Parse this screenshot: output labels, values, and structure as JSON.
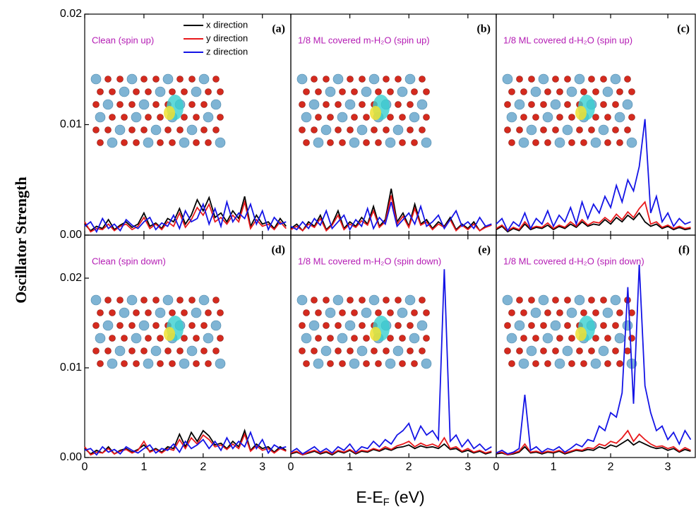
{
  "figure": {
    "ylabel": "Oscillator Strength",
    "xlabel": [
      "E-E",
      "F",
      " (eV)"
    ]
  },
  "chart_data": [
    {
      "type": "line",
      "panel": "(a)",
      "title": "Clean (spin up)",
      "legend": "upper right",
      "xlim": [
        0,
        3.48
      ],
      "ylim": [
        0,
        0.02
      ],
      "xticks": [
        0,
        1,
        2,
        3
      ],
      "xtick_labels": false,
      "yticks": [
        {
          "value": 0,
          "label": "0.00"
        },
        {
          "value": 0.01,
          "label": "0.01"
        },
        {
          "value": 0.02,
          "label": "0.02"
        }
      ],
      "x": [
        0,
        0.1,
        0.2,
        0.3,
        0.4,
        0.5,
        0.6,
        0.7,
        0.8,
        0.9,
        1,
        1.1,
        1.2,
        1.3,
        1.4,
        1.5,
        1.6,
        1.7,
        1.8,
        1.9,
        2,
        2.1,
        2.2,
        2.3,
        2.4,
        2.5,
        2.6,
        2.7,
        2.8,
        2.9,
        3,
        3.1,
        3.2,
        3.3,
        3.4
      ],
      "series": [
        {
          "name": "x direction",
          "color": "#000000",
          "values": [
            0.001,
            0.0004,
            0.0008,
            0.0006,
            0.0014,
            0.0005,
            0.0009,
            0.0012,
            0.0007,
            0.001,
            0.002,
            0.0008,
            0.0011,
            0.0006,
            0.0015,
            0.0012,
            0.0024,
            0.001,
            0.0018,
            0.0032,
            0.0022,
            0.0034,
            0.0016,
            0.002,
            0.0012,
            0.0022,
            0.0015,
            0.0035,
            0.0008,
            0.0018,
            0.001,
            0.0012,
            0.0006,
            0.0015,
            0.0008
          ]
        },
        {
          "name": "y direction",
          "color": "#e8191c",
          "values": [
            0.0012,
            0.0003,
            0.0006,
            0.0005,
            0.001,
            0.0004,
            0.0008,
            0.001,
            0.0005,
            0.0008,
            0.0016,
            0.0006,
            0.001,
            0.0005,
            0.0012,
            0.0008,
            0.002,
            0.0007,
            0.0014,
            0.0025,
            0.0018,
            0.0028,
            0.0012,
            0.0016,
            0.001,
            0.0018,
            0.0012,
            0.003,
            0.0006,
            0.0014,
            0.0008,
            0.001,
            0.0005,
            0.0012,
            0.0006
          ]
        },
        {
          "name": "z direction",
          "color": "#1414e6",
          "values": [
            0.0008,
            0.0012,
            0.0003,
            0.0015,
            0.0006,
            0.001,
            0.0004,
            0.0014,
            0.0009,
            0.0006,
            0.0012,
            0.0016,
            0.0005,
            0.0011,
            0.0008,
            0.0018,
            0.0006,
            0.0022,
            0.0012,
            0.0015,
            0.0028,
            0.001,
            0.0024,
            0.0008,
            0.003,
            0.0012,
            0.002,
            0.0015,
            0.0028,
            0.001,
            0.0022,
            0.0005,
            0.0016,
            0.001,
            0.0012
          ]
        }
      ]
    },
    {
      "type": "line",
      "panel": "(b)",
      "title": "1/8 ML covered m-H₂O (spin up)",
      "xlim": [
        0,
        3.48
      ],
      "ylim": [
        0,
        0.02
      ],
      "xticks": [
        0,
        1,
        2,
        3
      ],
      "xtick_labels": false,
      "x": [
        0,
        0.1,
        0.2,
        0.3,
        0.4,
        0.5,
        0.6,
        0.7,
        0.8,
        0.9,
        1,
        1.1,
        1.2,
        1.3,
        1.4,
        1.5,
        1.6,
        1.7,
        1.8,
        1.9,
        2,
        2.1,
        2.2,
        2.3,
        2.4,
        2.5,
        2.6,
        2.7,
        2.8,
        2.9,
        3,
        3.1,
        3.2,
        3.3,
        3.4
      ],
      "series": [
        {
          "name": "x direction",
          "color": "#000000",
          "values": [
            0.0006,
            0.001,
            0.0004,
            0.0012,
            0.0008,
            0.0018,
            0.0005,
            0.001,
            0.0022,
            0.0006,
            0.0012,
            0.0008,
            0.0016,
            0.001,
            0.0026,
            0.0008,
            0.0014,
            0.0042,
            0.0012,
            0.002,
            0.0008,
            0.0028,
            0.001,
            0.0014,
            0.0006,
            0.0012,
            0.0008,
            0.0016,
            0.0005,
            0.001,
            0.0006,
            0.0012,
            0.0004,
            0.0008,
            0.001
          ]
        },
        {
          "name": "y direction",
          "color": "#e8191c",
          "values": [
            0.0005,
            0.0008,
            0.0004,
            0.001,
            0.0007,
            0.0015,
            0.0004,
            0.0009,
            0.0018,
            0.0005,
            0.001,
            0.0007,
            0.0013,
            0.0009,
            0.0022,
            0.0007,
            0.0012,
            0.0036,
            0.001,
            0.0017,
            0.0007,
            0.0024,
            0.0009,
            0.0012,
            0.0005,
            0.001,
            0.0007,
            0.0014,
            0.0004,
            0.0009,
            0.0005,
            0.001,
            0.0004,
            0.0007,
            0.0009
          ]
        },
        {
          "name": "z direction",
          "color": "#1414e6",
          "values": [
            0.0008,
            0.0005,
            0.0012,
            0.0006,
            0.0015,
            0.0009,
            0.0022,
            0.0006,
            0.0012,
            0.0018,
            0.0005,
            0.0014,
            0.0008,
            0.0024,
            0.0006,
            0.0016,
            0.001,
            0.003,
            0.0008,
            0.0014,
            0.002,
            0.001,
            0.0026,
            0.0008,
            0.0012,
            0.0018,
            0.0006,
            0.0014,
            0.0022,
            0.0008,
            0.0012,
            0.0006,
            0.0016,
            0.0008,
            0.001
          ]
        }
      ]
    },
    {
      "type": "line",
      "panel": "(c)",
      "title": "1/8 ML covered d-H₂O (spin up)",
      "xlim": [
        0,
        3.48
      ],
      "ylim": [
        0,
        0.02
      ],
      "xticks": [
        0,
        1,
        2,
        3
      ],
      "xtick_labels": false,
      "x": [
        0,
        0.1,
        0.2,
        0.3,
        0.4,
        0.5,
        0.6,
        0.7,
        0.8,
        0.9,
        1,
        1.1,
        1.2,
        1.3,
        1.4,
        1.5,
        1.6,
        1.7,
        1.8,
        1.9,
        2,
        2.1,
        2.2,
        2.3,
        2.4,
        2.5,
        2.6,
        2.7,
        2.8,
        2.9,
        3,
        3.1,
        3.2,
        3.3,
        3.4
      ],
      "series": [
        {
          "name": "x direction",
          "color": "#000000",
          "values": [
            0.0005,
            0.0008,
            0.0003,
            0.0006,
            0.0004,
            0.001,
            0.0005,
            0.0007,
            0.0006,
            0.0009,
            0.0005,
            0.0008,
            0.0006,
            0.001,
            0.0007,
            0.0012,
            0.0008,
            0.001,
            0.0009,
            0.0014,
            0.001,
            0.0016,
            0.0012,
            0.0018,
            0.0014,
            0.002,
            0.0012,
            0.0008,
            0.001,
            0.0006,
            0.0008,
            0.0005,
            0.0007,
            0.0005,
            0.0006
          ]
        },
        {
          "name": "y direction",
          "color": "#e8191c",
          "values": [
            0.0006,
            0.0009,
            0.0004,
            0.0007,
            0.0005,
            0.0012,
            0.0006,
            0.0008,
            0.0007,
            0.0011,
            0.0006,
            0.0009,
            0.0007,
            0.0012,
            0.0008,
            0.0014,
            0.0009,
            0.0012,
            0.0011,
            0.0016,
            0.0012,
            0.0019,
            0.0014,
            0.0021,
            0.0016,
            0.0024,
            0.003,
            0.001,
            0.0012,
            0.0007,
            0.0009,
            0.0006,
            0.0008,
            0.0006,
            0.0007
          ]
        },
        {
          "name": "z direction",
          "color": "#1414e6",
          "values": [
            0.001,
            0.0015,
            0.0004,
            0.0012,
            0.0008,
            0.002,
            0.0006,
            0.0015,
            0.001,
            0.0022,
            0.0008,
            0.0018,
            0.0012,
            0.0025,
            0.001,
            0.003,
            0.0015,
            0.0028,
            0.002,
            0.0035,
            0.0025,
            0.0045,
            0.003,
            0.005,
            0.004,
            0.0062,
            0.0105,
            0.002,
            0.0035,
            0.0012,
            0.002,
            0.0008,
            0.0015,
            0.001,
            0.0012
          ]
        }
      ]
    },
    {
      "type": "line",
      "panel": "(d)",
      "title": "Clean (spin down)",
      "xlim": [
        0,
        3.48
      ],
      "ylim": [
        0,
        0.0248
      ],
      "xticks": [
        0,
        1,
        2,
        3
      ],
      "xtick_labels": true,
      "yticks": [
        {
          "value": 0,
          "label": "0.00"
        },
        {
          "value": 0.01,
          "label": "0.01"
        },
        {
          "value": 0.02,
          "label": "0.02"
        }
      ],
      "x": [
        0,
        0.1,
        0.2,
        0.3,
        0.4,
        0.5,
        0.6,
        0.7,
        0.8,
        0.9,
        1,
        1.1,
        1.2,
        1.3,
        1.4,
        1.5,
        1.6,
        1.7,
        1.8,
        1.9,
        2,
        2.1,
        2.2,
        2.3,
        2.4,
        2.5,
        2.6,
        2.7,
        2.8,
        2.9,
        3,
        3.1,
        3.2,
        3.3,
        3.4
      ],
      "series": [
        {
          "name": "x direction",
          "color": "#000000",
          "values": [
            0.001,
            0.0004,
            0.0008,
            0.0005,
            0.0012,
            0.0004,
            0.0008,
            0.001,
            0.0006,
            0.0009,
            0.0014,
            0.0007,
            0.001,
            0.0006,
            0.0012,
            0.001,
            0.0026,
            0.0012,
            0.0028,
            0.0018,
            0.003,
            0.0024,
            0.0014,
            0.0016,
            0.001,
            0.0018,
            0.0012,
            0.003,
            0.0008,
            0.0015,
            0.001,
            0.0012,
            0.0006,
            0.0012,
            0.0008
          ]
        },
        {
          "name": "y direction",
          "color": "#e8191c",
          "values": [
            0.0012,
            0.0003,
            0.0006,
            0.0005,
            0.001,
            0.0004,
            0.0007,
            0.0009,
            0.0005,
            0.0008,
            0.0018,
            0.0006,
            0.0009,
            0.0005,
            0.001,
            0.0008,
            0.002,
            0.001,
            0.0022,
            0.0015,
            0.0025,
            0.002,
            0.0012,
            0.0014,
            0.0009,
            0.0015,
            0.001,
            0.0026,
            0.0007,
            0.0013,
            0.0008,
            0.001,
            0.0005,
            0.001,
            0.0007
          ]
        },
        {
          "name": "z direction",
          "color": "#1414e6",
          "values": [
            0.0008,
            0.001,
            0.0003,
            0.0012,
            0.0006,
            0.0009,
            0.0004,
            0.0012,
            0.0008,
            0.0005,
            0.001,
            0.0014,
            0.0005,
            0.001,
            0.0008,
            0.0015,
            0.0006,
            0.0018,
            0.001,
            0.0014,
            0.002,
            0.001,
            0.0018,
            0.0008,
            0.0022,
            0.001,
            0.0018,
            0.0012,
            0.0028,
            0.001,
            0.002,
            0.0005,
            0.0014,
            0.001,
            0.0012
          ]
        }
      ]
    },
    {
      "type": "line",
      "panel": "(e)",
      "title": "1/8 ML covered m-H₂O (spin down)",
      "xlim": [
        0,
        3.48
      ],
      "ylim": [
        0,
        0.0248
      ],
      "xticks": [
        0,
        1,
        2,
        3
      ],
      "xtick_labels": true,
      "x": [
        0,
        0.1,
        0.2,
        0.3,
        0.4,
        0.5,
        0.6,
        0.7,
        0.8,
        0.9,
        1,
        1.1,
        1.2,
        1.3,
        1.4,
        1.5,
        1.6,
        1.7,
        1.8,
        1.9,
        2,
        2.1,
        2.2,
        2.3,
        2.4,
        2.5,
        2.6,
        2.7,
        2.8,
        2.9,
        3,
        3.1,
        3.2,
        3.3,
        3.4
      ],
      "series": [
        {
          "name": "x direction",
          "color": "#000000",
          "values": [
            0.0004,
            0.0006,
            0.0003,
            0.0005,
            0.0007,
            0.0004,
            0.0006,
            0.0003,
            0.0007,
            0.0005,
            0.0008,
            0.0004,
            0.0007,
            0.0006,
            0.0009,
            0.0007,
            0.001,
            0.0008,
            0.0011,
            0.0012,
            0.0014,
            0.001,
            0.0013,
            0.0011,
            0.0012,
            0.001,
            0.0015,
            0.0009,
            0.001,
            0.0006,
            0.0008,
            0.0005,
            0.0007,
            0.0004,
            0.0006
          ]
        },
        {
          "name": "y direction",
          "color": "#e8191c",
          "values": [
            0.0005,
            0.0007,
            0.0003,
            0.0006,
            0.0008,
            0.0005,
            0.0007,
            0.0004,
            0.0008,
            0.0006,
            0.0009,
            0.0005,
            0.0008,
            0.0007,
            0.001,
            0.0008,
            0.0012,
            0.0009,
            0.0013,
            0.0015,
            0.0018,
            0.0012,
            0.0016,
            0.0013,
            0.0015,
            0.0012,
            0.0022,
            0.001,
            0.0012,
            0.0007,
            0.001,
            0.0006,
            0.0008,
            0.0005,
            0.0007
          ]
        },
        {
          "name": "z direction",
          "color": "#1414e6",
          "values": [
            0.0006,
            0.001,
            0.0004,
            0.0008,
            0.0012,
            0.0006,
            0.001,
            0.0005,
            0.0012,
            0.0008,
            0.0015,
            0.0006,
            0.0012,
            0.001,
            0.0018,
            0.0012,
            0.002,
            0.0015,
            0.0025,
            0.003,
            0.0038,
            0.002,
            0.0035,
            0.0025,
            0.003,
            0.002,
            0.021,
            0.0018,
            0.0025,
            0.0012,
            0.002,
            0.001,
            0.0015,
            0.0008,
            0.0012
          ]
        }
      ]
    },
    {
      "type": "line",
      "panel": "(f)",
      "title": "1/8 ML covered d-H₂O (spin down)",
      "xlim": [
        0,
        3.48
      ],
      "ylim": [
        0,
        0.0248
      ],
      "xticks": [
        0,
        1,
        2,
        3
      ],
      "xtick_labels": true,
      "x": [
        0,
        0.1,
        0.2,
        0.3,
        0.4,
        0.5,
        0.6,
        0.7,
        0.8,
        0.9,
        1,
        1.1,
        1.2,
        1.3,
        1.4,
        1.5,
        1.6,
        1.7,
        1.8,
        1.9,
        2,
        2.1,
        2.2,
        2.3,
        2.4,
        2.5,
        2.6,
        2.7,
        2.8,
        2.9,
        3,
        3.1,
        3.2,
        3.3,
        3.4
      ],
      "series": [
        {
          "name": "x direction",
          "color": "#000000",
          "values": [
            0.0004,
            0.0005,
            0.0003,
            0.0004,
            0.0006,
            0.0012,
            0.0005,
            0.0006,
            0.0004,
            0.0006,
            0.0005,
            0.0007,
            0.0004,
            0.0006,
            0.0008,
            0.0007,
            0.0009,
            0.0008,
            0.0012,
            0.001,
            0.0014,
            0.0012,
            0.0016,
            0.002,
            0.0014,
            0.0018,
            0.0015,
            0.0012,
            0.001,
            0.0011,
            0.0008,
            0.001,
            0.0006,
            0.0009,
            0.0007
          ]
        },
        {
          "name": "y direction",
          "color": "#e8191c",
          "values": [
            0.0005,
            0.0006,
            0.0003,
            0.0005,
            0.0007,
            0.0015,
            0.0006,
            0.0007,
            0.0005,
            0.0007,
            0.0006,
            0.0008,
            0.0005,
            0.0007,
            0.0009,
            0.0008,
            0.0011,
            0.001,
            0.0015,
            0.0013,
            0.0018,
            0.0016,
            0.0022,
            0.003,
            0.0018,
            0.0026,
            0.002,
            0.0015,
            0.0012,
            0.0013,
            0.001,
            0.0012,
            0.0007,
            0.0011,
            0.0008
          ]
        },
        {
          "name": "z direction",
          "color": "#1414e6",
          "values": [
            0.0005,
            0.0008,
            0.0004,
            0.0006,
            0.001,
            0.007,
            0.0008,
            0.0012,
            0.0006,
            0.001,
            0.0008,
            0.0012,
            0.0006,
            0.001,
            0.0015,
            0.0012,
            0.002,
            0.0018,
            0.0035,
            0.003,
            0.005,
            0.0045,
            0.0072,
            0.019,
            0.006,
            0.0215,
            0.008,
            0.005,
            0.003,
            0.0035,
            0.002,
            0.0028,
            0.0015,
            0.003,
            0.002
          ]
        }
      ]
    }
  ]
}
